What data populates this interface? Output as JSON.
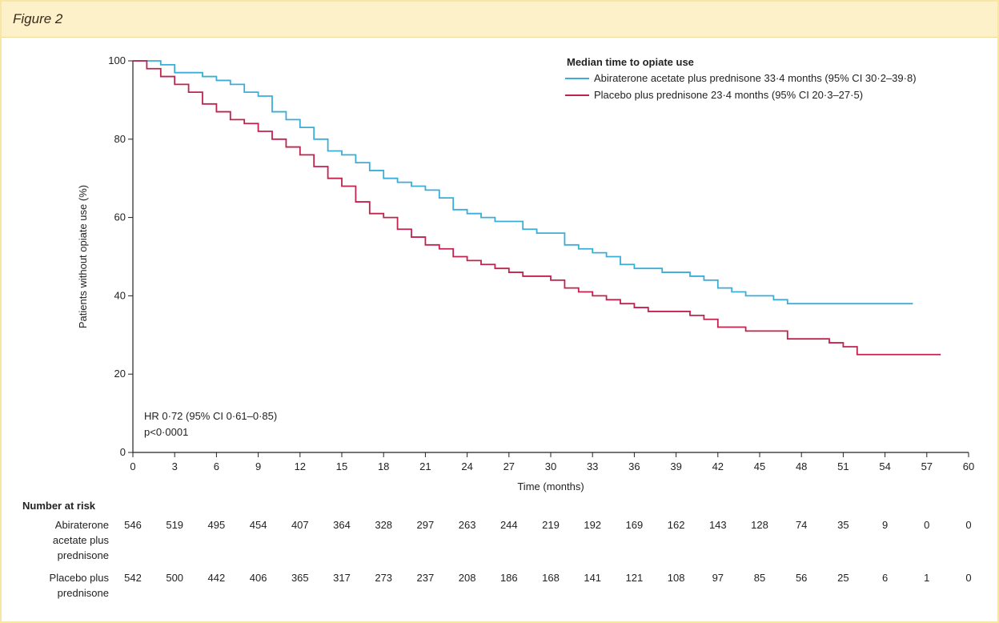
{
  "figure_label": "Figure 2",
  "chart_data": {
    "type": "line",
    "step": true,
    "xlabel": "Time (months)",
    "ylabel": "Patients without opiate use (%)",
    "xlim": [
      0,
      60
    ],
    "ylim": [
      0,
      100
    ],
    "x_ticks": [
      0,
      3,
      6,
      9,
      12,
      15,
      18,
      21,
      24,
      27,
      30,
      33,
      36,
      39,
      42,
      45,
      48,
      51,
      54,
      57,
      60
    ],
    "y_ticks": [
      0,
      20,
      40,
      60,
      80,
      100
    ],
    "grid": false,
    "legend_title": "Median time to opiate use",
    "legend_position": "top-right",
    "series": [
      {
        "name": "Abiraterone acetate plus prednisone 33·4 months (95% CI 30·2–39·8)",
        "color": "#3aaed8",
        "points": [
          [
            0,
            100
          ],
          [
            1,
            100
          ],
          [
            2,
            99
          ],
          [
            3,
            97
          ],
          [
            5,
            96
          ],
          [
            6,
            95
          ],
          [
            7,
            94
          ],
          [
            8,
            92
          ],
          [
            9,
            91
          ],
          [
            10,
            87
          ],
          [
            11,
            85
          ],
          [
            12,
            83
          ],
          [
            13,
            80
          ],
          [
            14,
            77
          ],
          [
            15,
            76
          ],
          [
            16,
            74
          ],
          [
            17,
            72
          ],
          [
            18,
            70
          ],
          [
            19,
            69
          ],
          [
            20,
            68
          ],
          [
            21,
            67
          ],
          [
            22,
            65
          ],
          [
            23,
            62
          ],
          [
            24,
            61
          ],
          [
            25,
            60
          ],
          [
            26,
            59
          ],
          [
            27,
            59
          ],
          [
            28,
            57
          ],
          [
            29,
            56
          ],
          [
            30,
            56
          ],
          [
            31,
            53
          ],
          [
            32,
            52
          ],
          [
            33,
            51
          ],
          [
            34,
            50
          ],
          [
            35,
            48
          ],
          [
            36,
            47
          ],
          [
            37,
            47
          ],
          [
            38,
            46
          ],
          [
            39,
            46
          ],
          [
            40,
            45
          ],
          [
            41,
            44
          ],
          [
            42,
            42
          ],
          [
            43,
            41
          ],
          [
            44,
            40
          ],
          [
            45,
            40
          ],
          [
            46,
            39
          ],
          [
            47,
            38
          ],
          [
            48,
            38
          ],
          [
            49,
            38
          ],
          [
            50,
            38
          ],
          [
            51,
            38
          ],
          [
            52,
            38
          ],
          [
            53,
            38
          ],
          [
            54,
            38
          ],
          [
            55,
            38
          ],
          [
            56,
            38
          ]
        ]
      },
      {
        "name": "Placebo plus prednisone 23·4 months (95% CI 20·3–27·5)",
        "color": "#c0234e",
        "points": [
          [
            0,
            100
          ],
          [
            1,
            98
          ],
          [
            2,
            96
          ],
          [
            3,
            94
          ],
          [
            4,
            92
          ],
          [
            5,
            89
          ],
          [
            6,
            87
          ],
          [
            7,
            85
          ],
          [
            8,
            84
          ],
          [
            9,
            82
          ],
          [
            10,
            80
          ],
          [
            11,
            78
          ],
          [
            12,
            76
          ],
          [
            13,
            73
          ],
          [
            14,
            70
          ],
          [
            15,
            68
          ],
          [
            16,
            64
          ],
          [
            17,
            61
          ],
          [
            18,
            60
          ],
          [
            19,
            57
          ],
          [
            20,
            55
          ],
          [
            21,
            53
          ],
          [
            22,
            52
          ],
          [
            23,
            50
          ],
          [
            24,
            49
          ],
          [
            25,
            48
          ],
          [
            26,
            47
          ],
          [
            27,
            46
          ],
          [
            28,
            45
          ],
          [
            29,
            45
          ],
          [
            30,
            44
          ],
          [
            31,
            42
          ],
          [
            32,
            41
          ],
          [
            33,
            40
          ],
          [
            34,
            39
          ],
          [
            35,
            38
          ],
          [
            36,
            37
          ],
          [
            37,
            36
          ],
          [
            38,
            36
          ],
          [
            39,
            36
          ],
          [
            40,
            35
          ],
          [
            41,
            34
          ],
          [
            42,
            32
          ],
          [
            43,
            32
          ],
          [
            44,
            31
          ],
          [
            45,
            31
          ],
          [
            46,
            31
          ],
          [
            47,
            29
          ],
          [
            48,
            29
          ],
          [
            49,
            29
          ],
          [
            50,
            28
          ],
          [
            51,
            27
          ],
          [
            52,
            25
          ],
          [
            53,
            25
          ],
          [
            54,
            25
          ],
          [
            55,
            25
          ],
          [
            56,
            25
          ],
          [
            57,
            25
          ],
          [
            58,
            25
          ]
        ]
      }
    ],
    "annotations": [
      "HR 0·72 (95% CI 0·61–0·85)",
      "p<0·0001"
    ],
    "risk_table": {
      "title": "Number at risk",
      "rows": [
        {
          "label": [
            "Abiraterone",
            "acetate plus",
            "prednisone"
          ],
          "values": [
            "546",
            "519",
            "495",
            "454",
            "407",
            "364",
            "328",
            "297",
            "263",
            "244",
            "219",
            "192",
            "169",
            "162",
            "143",
            "128",
            "74",
            "35",
            "9",
            "0",
            "0"
          ]
        },
        {
          "label": [
            "Placebo plus",
            "prednisone"
          ],
          "values": [
            "542",
            "500",
            "442",
            "406",
            "365",
            "317",
            "273",
            "237",
            "208",
            "186",
            "168",
            "141",
            "121",
            "108",
            "97",
            "85",
            "56",
            "25",
            "6",
            "1",
            "0"
          ]
        }
      ]
    }
  }
}
